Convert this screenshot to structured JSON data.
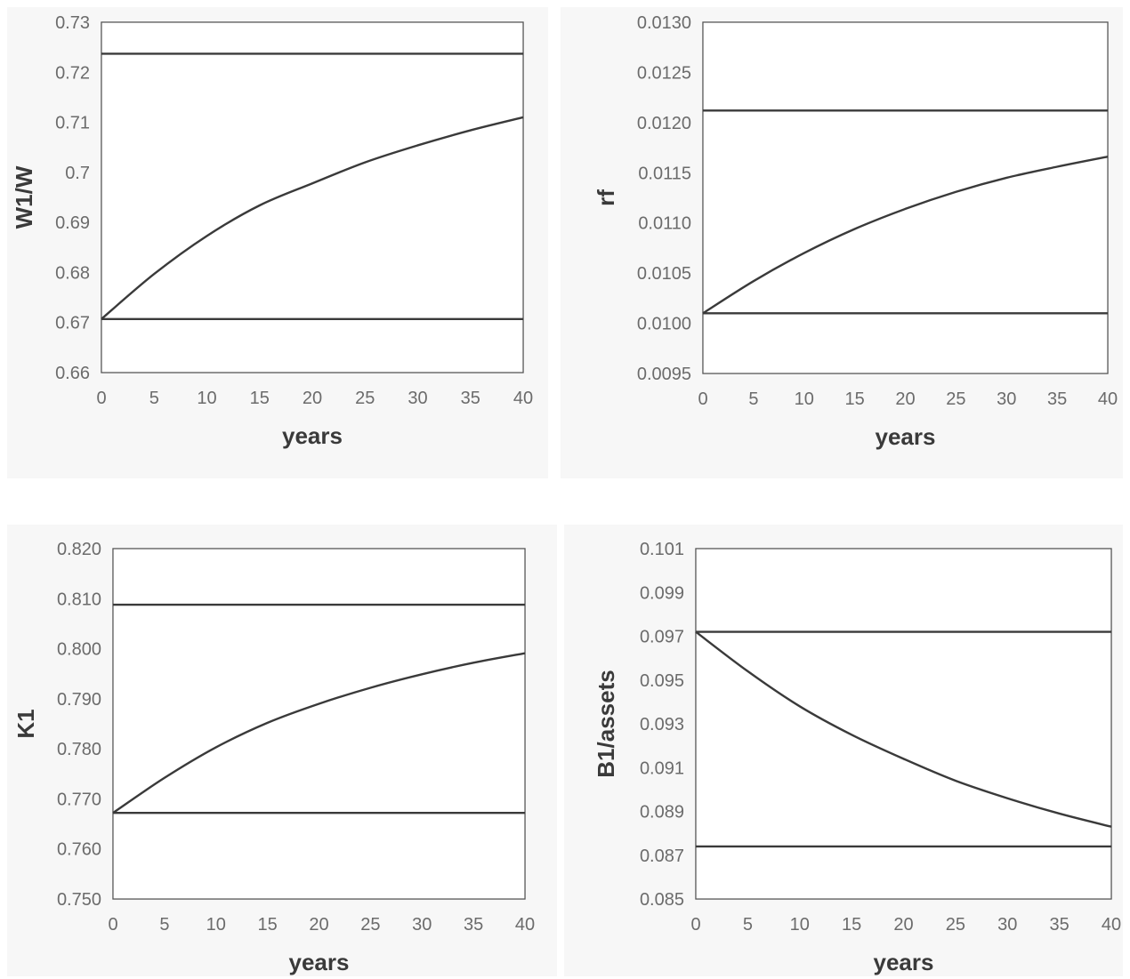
{
  "colors": {
    "line": "#3a3a3a",
    "grid": "#d9d9d9",
    "panel_background": "#f7f7f7",
    "tick_text": "#6b6b6b"
  },
  "chart_data": [
    {
      "id": "w1w",
      "type": "line",
      "title": "",
      "xlabel": "years",
      "ylabel": "W1/W",
      "xlim": [
        0,
        40
      ],
      "ylim": [
        0.66,
        0.73
      ],
      "grid": true,
      "legend": "none",
      "xticks": [
        0,
        5,
        10,
        15,
        20,
        25,
        30,
        35,
        40
      ],
      "yticks": [
        0.66,
        0.67,
        0.68,
        0.69,
        0.7,
        0.71,
        0.72,
        0.73
      ],
      "xtick_labels": [
        "0",
        "5",
        "10",
        "15",
        "20",
        "25",
        "30",
        "35",
        "40"
      ],
      "ytick_labels": [
        "0.66",
        "0.67",
        "0.68",
        "0.69",
        "0.7",
        "0.71",
        "0.72",
        "0.73"
      ],
      "x": [
        0,
        5,
        10,
        15,
        20,
        25,
        30,
        35,
        40
      ],
      "series": [
        {
          "values": [
            0.7237,
            0.7237,
            0.7237,
            0.7237,
            0.7237,
            0.7237,
            0.7237,
            0.7237,
            0.7237
          ]
        },
        {
          "values": [
            0.6707,
            0.6797,
            0.6873,
            0.6934,
            0.6978,
            0.702,
            0.7054,
            0.7084,
            0.711
          ]
        },
        {
          "values": [
            0.6707,
            0.6707,
            0.6707,
            0.6707,
            0.6707,
            0.6707,
            0.6707,
            0.6707,
            0.6707
          ]
        }
      ]
    },
    {
      "id": "rf",
      "type": "line",
      "title": "",
      "xlabel": "years",
      "ylabel": "rf",
      "xlim": [
        0,
        40
      ],
      "ylim": [
        0.0095,
        0.013
      ],
      "grid": true,
      "legend": "none",
      "xticks": [
        0,
        5,
        10,
        15,
        20,
        25,
        30,
        35,
        40
      ],
      "yticks": [
        0.0095,
        0.01,
        0.0105,
        0.011,
        0.0115,
        0.012,
        0.0125,
        0.013
      ],
      "xtick_labels": [
        "0",
        "5",
        "10",
        "15",
        "20",
        "25",
        "30",
        "35",
        "40"
      ],
      "ytick_labels": [
        "0.0095",
        "0.0100",
        "0.0105",
        "0.0110",
        "0.0115",
        "0.0120",
        "0.0125",
        "0.0130"
      ],
      "x": [
        0,
        5,
        10,
        15,
        20,
        25,
        30,
        35,
        40
      ],
      "series": [
        {
          "values": [
            0.01212,
            0.01212,
            0.01212,
            0.01212,
            0.01212,
            0.01212,
            0.01212,
            0.01212,
            0.01212
          ]
        },
        {
          "values": [
            0.0101,
            0.01042,
            0.0107,
            0.01094,
            0.01114,
            0.01131,
            0.01145,
            0.01156,
            0.01166
          ]
        },
        {
          "values": [
            0.0101,
            0.0101,
            0.0101,
            0.0101,
            0.0101,
            0.0101,
            0.0101,
            0.0101,
            0.0101
          ]
        }
      ]
    },
    {
      "id": "k1",
      "type": "line",
      "title": "",
      "xlabel": "years",
      "ylabel": "K1",
      "xlim": [
        0,
        40
      ],
      "ylim": [
        0.75,
        0.82
      ],
      "grid": true,
      "legend": "none",
      "xticks": [
        0,
        5,
        10,
        15,
        20,
        25,
        30,
        35,
        40
      ],
      "yticks": [
        0.75,
        0.76,
        0.77,
        0.78,
        0.79,
        0.8,
        0.81,
        0.82
      ],
      "xtick_labels": [
        "0",
        "5",
        "10",
        "15",
        "20",
        "25",
        "30",
        "35",
        "40"
      ],
      "ytick_labels": [
        "0.750",
        "0.760",
        "0.770",
        "0.780",
        "0.790",
        "0.800",
        "0.810",
        "0.820"
      ],
      "x": [
        0,
        5,
        10,
        15,
        20,
        25,
        30,
        35,
        40
      ],
      "series": [
        {
          "values": [
            0.8088,
            0.8088,
            0.8088,
            0.8088,
            0.8088,
            0.8088,
            0.8088,
            0.8088,
            0.8088
          ]
        },
        {
          "values": [
            0.7672,
            0.7742,
            0.7803,
            0.7852,
            0.789,
            0.7922,
            0.7949,
            0.7972,
            0.7991
          ]
        },
        {
          "values": [
            0.7672,
            0.7672,
            0.7672,
            0.7672,
            0.7672,
            0.7672,
            0.7672,
            0.7672,
            0.7672
          ]
        }
      ]
    },
    {
      "id": "b1assets",
      "type": "line",
      "title": "",
      "xlabel": "years",
      "ylabel": "B1/assets",
      "xlim": [
        0,
        40
      ],
      "ylim": [
        0.085,
        0.101
      ],
      "grid": true,
      "legend": "none",
      "xticks": [
        0,
        5,
        10,
        15,
        20,
        25,
        30,
        35,
        40
      ],
      "yticks": [
        0.085,
        0.087,
        0.089,
        0.091,
        0.093,
        0.095,
        0.097,
        0.099,
        0.101
      ],
      "xtick_labels": [
        "0",
        "5",
        "10",
        "15",
        "20",
        "25",
        "30",
        "35",
        "40"
      ],
      "ytick_labels": [
        "0.085",
        "0.087",
        "0.089",
        "0.091",
        "0.093",
        "0.095",
        "0.097",
        "0.099",
        "0.101"
      ],
      "x": [
        0,
        5,
        10,
        15,
        20,
        25,
        30,
        35,
        40
      ],
      "series": [
        {
          "values": [
            0.0972,
            0.0972,
            0.0972,
            0.0972,
            0.0972,
            0.0972,
            0.0972,
            0.0972,
            0.0972
          ]
        },
        {
          "values": [
            0.0972,
            0.0954,
            0.0938,
            0.0925,
            0.0914,
            0.0904,
            0.0896,
            0.0889,
            0.0883
          ]
        },
        {
          "values": [
            0.0874,
            0.0874,
            0.0874,
            0.0874,
            0.0874,
            0.0874,
            0.0874,
            0.0874,
            0.0874
          ]
        }
      ]
    }
  ]
}
